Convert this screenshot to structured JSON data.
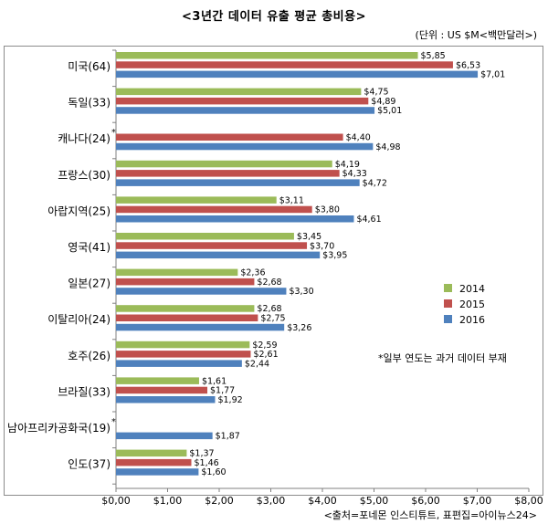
{
  "chart_data": {
    "type": "bar",
    "orientation": "horizontal",
    "title": "<3년간 데이터 유출 평균 총비용>",
    "unit": "(단위 : US $M<백만달러>)",
    "source": "<출처=포네몬 인스티튜트, 표편집=아이뉴스24>",
    "note": "*일부 연도는 과거 데이터 부재",
    "xlim": [
      0,
      8
    ],
    "xticks": [
      "$0,00",
      "$1,00",
      "$2,00",
      "$3,00",
      "$4,00",
      "$5,00",
      "$6,00",
      "$7,00",
      "$8,00"
    ],
    "legend_position": "right",
    "colors": {
      "2014": "#9bbb59",
      "2015": "#c0504d",
      "2016": "#4f81bd"
    },
    "categories": [
      {
        "name": "미국(64)",
        "star": ""
      },
      {
        "name": "독일(33)",
        "star": ""
      },
      {
        "name": "캐나다(24)",
        "star": "*"
      },
      {
        "name": "프랑스(30)",
        "star": ""
      },
      {
        "name": "아랍지역(25)",
        "star": ""
      },
      {
        "name": "영국(41)",
        "star": ""
      },
      {
        "name": "일본(27)",
        "star": ""
      },
      {
        "name": "이탈리아(24)",
        "star": ""
      },
      {
        "name": "호주(26)",
        "star": ""
      },
      {
        "name": "브라질(33)",
        "star": ""
      },
      {
        "name": "남아프리카공화국(19)",
        "star": "*"
      },
      {
        "name": "인도(37)",
        "star": ""
      }
    ],
    "series": [
      {
        "name": "2014",
        "values": [
          5.85,
          4.75,
          null,
          4.19,
          3.11,
          3.45,
          2.36,
          2.68,
          2.59,
          1.61,
          null,
          1.37
        ],
        "labels": [
          "$5,85",
          "$4,75",
          "",
          "$4,19",
          "$3,11",
          "$3,45",
          "$2,36",
          "$2,68",
          "$2,59",
          "$1,61",
          "",
          "$1,37"
        ]
      },
      {
        "name": "2015",
        "values": [
          6.53,
          4.89,
          4.4,
          4.33,
          3.8,
          3.7,
          2.68,
          2.75,
          2.61,
          1.77,
          null,
          1.46
        ],
        "labels": [
          "$6,53",
          "$4,89",
          "$4,40",
          "$4,33",
          "$3,80",
          "$3,70",
          "$2,68",
          "$2,75",
          "$2,61",
          "$1,77",
          "",
          "$1,46"
        ]
      },
      {
        "name": "2016",
        "values": [
          7.01,
          5.01,
          4.98,
          4.72,
          4.61,
          3.95,
          3.3,
          3.26,
          2.44,
          1.92,
          1.87,
          1.6
        ],
        "labels": [
          "$7,01",
          "$5,01",
          "$4,98",
          "$4,72",
          "$4,61",
          "$3,95",
          "$3,30",
          "$3,26",
          "$2,44",
          "$1,92",
          "$1,87",
          "$1,60"
        ]
      }
    ]
  }
}
